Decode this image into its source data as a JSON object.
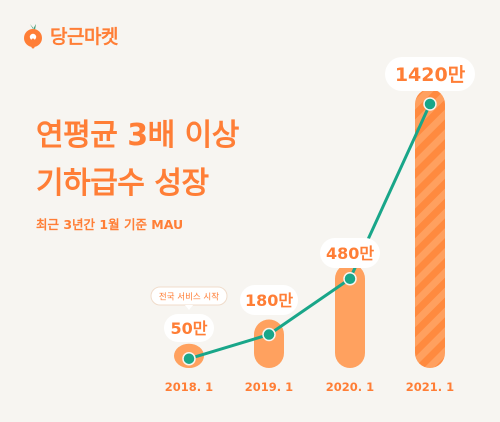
{
  "brand": {
    "name": "당근마켓",
    "accent": "#ff7e36",
    "line_color": "#19a689"
  },
  "headline": {
    "line1": "연평균 3배 이상",
    "line2": "기하급수 성장"
  },
  "subtitle": "최근 3년간 1월 기준 MAU",
  "chart_data": {
    "type": "bar",
    "categories": [
      "2018. 1",
      "2019. 1",
      "2020. 1",
      "2021. 1"
    ],
    "values": [
      50,
      180,
      480,
      1420
    ],
    "value_labels": [
      "50만",
      "180만",
      "480만",
      "1420만"
    ],
    "overlay": "line",
    "annotation": {
      "category": "2018. 1",
      "text": "전국 서비스 시작"
    },
    "ylim": [
      0,
      1420
    ],
    "grid": false,
    "legend": "none"
  }
}
